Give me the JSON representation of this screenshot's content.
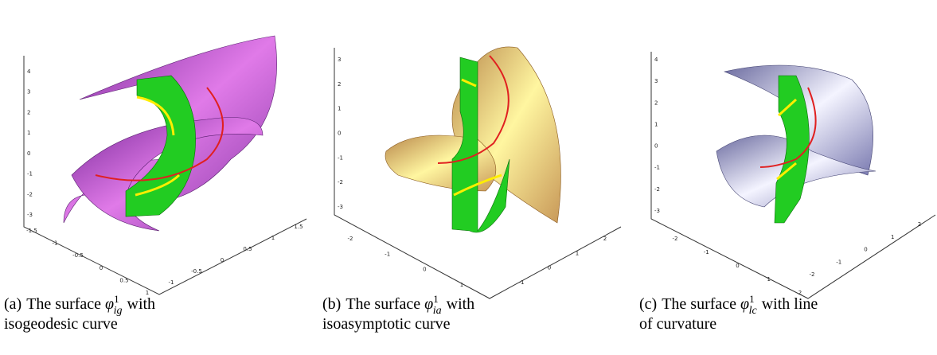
{
  "panels": [
    {
      "label": "(a)",
      "text": "The surface",
      "symbol": "φ",
      "sup": "1",
      "sub": "ig",
      "after": "with",
      "line2": "isogeodesic curve",
      "z_ticks": [
        "4",
        "3",
        "2",
        "1",
        "0",
        "-1",
        "-2",
        "-3"
      ],
      "left_ticks": [
        "-1.5",
        "-1",
        "-0.5",
        "0",
        "0.5",
        "1"
      ],
      "right_ticks": [
        "-1",
        "-0.5",
        "0",
        "0.5",
        "1",
        "1.5"
      ]
    },
    {
      "label": "(b)",
      "text": "The surface",
      "symbol": "φ",
      "sup": "1",
      "sub": "ia",
      "after": "with",
      "line2": "isoasymptotic curve",
      "z_ticks": [
        "3",
        "2",
        "1",
        "0",
        "-1",
        "-2",
        "-3"
      ],
      "left_ticks": [
        "-2",
        "-1",
        "0",
        "1"
      ],
      "right_ticks": [
        "-1",
        "0",
        "1",
        "2"
      ]
    },
    {
      "label": "(c)",
      "text": "The surface",
      "symbol": "φ",
      "sup": "1",
      "sub": "lc",
      "after": "with line",
      "line2": "of curvature",
      "z_ticks": [
        "4",
        "3",
        "2",
        "1",
        "0",
        "-1",
        "-2",
        "-3"
      ],
      "left_ticks": [
        "-2",
        "-1",
        "0",
        "1",
        "2"
      ],
      "right_ticks": [
        "-2",
        "-1",
        "0",
        "1",
        "2"
      ]
    }
  ]
}
